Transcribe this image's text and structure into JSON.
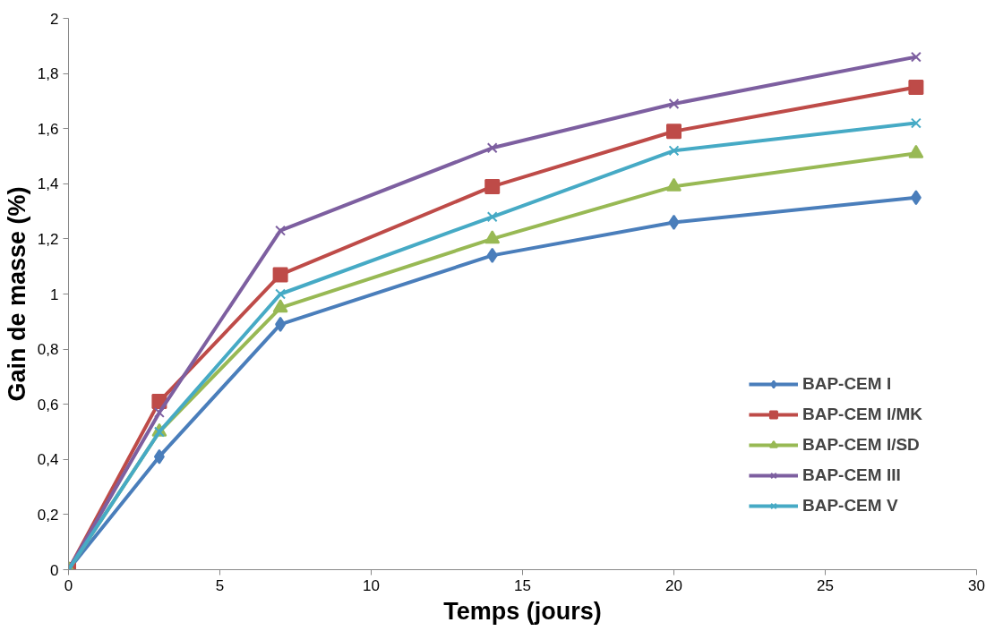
{
  "chart_data": {
    "type": "line",
    "xlabel": "Temps (jours)",
    "ylabel": "Gain de masse (%)",
    "x": [
      0,
      3,
      7,
      14,
      20,
      28
    ],
    "series": [
      {
        "name": "BAP-CEM I",
        "color": "#4a7ebb",
        "marker": "diamond",
        "values": [
          0,
          0.41,
          0.89,
          1.14,
          1.26,
          1.35
        ]
      },
      {
        "name": "BAP-CEM I/MK",
        "color": "#be4b48",
        "marker": "square",
        "values": [
          0,
          0.61,
          1.07,
          1.39,
          1.59,
          1.75
        ]
      },
      {
        "name": "BAP-CEM I/SD",
        "color": "#98b954",
        "marker": "triangle",
        "values": [
          0,
          0.5,
          0.95,
          1.2,
          1.39,
          1.51
        ]
      },
      {
        "name": "BAP-CEM III",
        "color": "#7d5fa0",
        "marker": "cross",
        "values": [
          0,
          0.57,
          1.23,
          1.53,
          1.69,
          1.86
        ]
      },
      {
        "name": "BAP-CEM V",
        "color": "#46aac5",
        "marker": "cross",
        "values": [
          0,
          0.5,
          1.0,
          1.28,
          1.52,
          1.62
        ]
      }
    ],
    "xlim": [
      0,
      30
    ],
    "xticks": [
      0,
      5,
      10,
      15,
      20,
      25,
      30
    ],
    "ylim": [
      0,
      2
    ],
    "yticks": [
      0,
      {
        "value": 0.2,
        "label": "0,2"
      },
      {
        "value": 0.4,
        "label": "0,4"
      },
      {
        "value": 0.6,
        "label": "0,6"
      },
      {
        "value": 0.8,
        "label": "0,8"
      },
      1,
      {
        "value": 1.2,
        "label": "1,2"
      },
      {
        "value": 1.4,
        "label": "1,4"
      },
      {
        "value": 1.6,
        "label": "1,6"
      },
      {
        "value": 1.8,
        "label": "1,8"
      },
      2
    ],
    "grid": false,
    "legend": "bottom right",
    "line_style": "solid"
  }
}
